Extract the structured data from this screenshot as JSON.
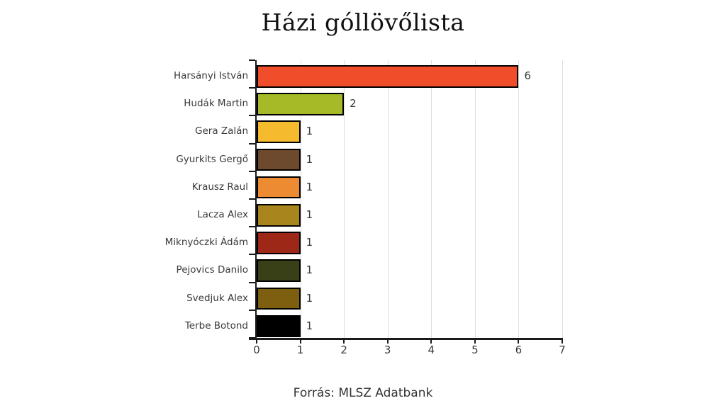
{
  "chart_data": {
    "type": "bar",
    "orientation": "horizontal",
    "title": "Házi góllövőlista",
    "categories": [
      "Harsányi István",
      "Hudák Martin",
      "Gera Zalán",
      "Gyurkits Gergő",
      "Krausz Raul",
      "Lacza Alex",
      "Miknyóczki Ádám",
      "Pejovics Danilo",
      "Svedjuk Alex",
      "Terbe Botond"
    ],
    "values": [
      6,
      2,
      1,
      1,
      1,
      1,
      1,
      1,
      1,
      1
    ],
    "bar_colors": [
      "#f04e2a",
      "#a6ba28",
      "#f6ba2f",
      "#6d4a2e",
      "#ed8b32",
      "#a8851d",
      "#9e2818",
      "#394018",
      "#7e5f10",
      "#000000"
    ],
    "bar_border_color": "#000000",
    "x_ticks": [
      "0",
      "1",
      "2",
      "3",
      "4",
      "5",
      "6",
      "7"
    ],
    "xlim": [
      0,
      7
    ],
    "grid": "vertical-gridlines-on",
    "gridline_color": "#dedede",
    "axis_color": "#1a1a1a",
    "legend": "none",
    "xlabel": "",
    "ylabel": ""
  },
  "footer": {
    "source": "Forrás: MLSZ Adatbank"
  }
}
